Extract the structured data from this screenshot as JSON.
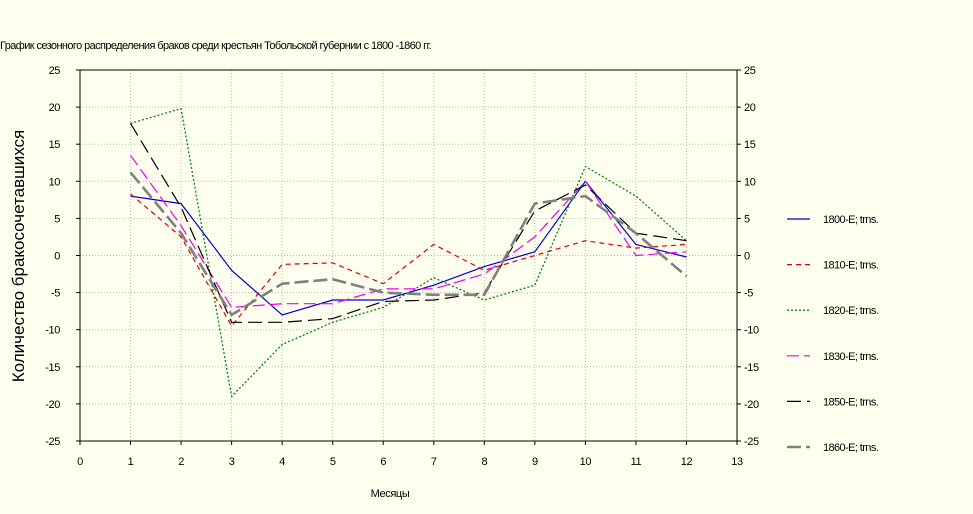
{
  "chart_data": {
    "type": "line",
    "title": "График сезонного распределения браков среди крестьян Тобольской губернии с 1800 -1860 гг.",
    "xlabel": "Месяцы",
    "ylabel": "Количество бракосочетавшихся",
    "xlim": [
      0,
      13
    ],
    "ylim": [
      -25,
      25
    ],
    "x_ticks": [
      0,
      1,
      2,
      3,
      4,
      5,
      6,
      7,
      8,
      9,
      10,
      11,
      12,
      13
    ],
    "y_ticks": [
      -25,
      -20,
      -15,
      -10,
      -5,
      0,
      5,
      10,
      15,
      20,
      25
    ],
    "grid": true,
    "legend_position": "right",
    "x": [
      1,
      2,
      3,
      4,
      5,
      6,
      7,
      8,
      9,
      10,
      11,
      12
    ],
    "series": [
      {
        "name": "1800-E; trns.",
        "color": "#0000cc",
        "dash": "solid",
        "width": 1.2,
        "values": [
          8,
          7,
          -2,
          -8,
          -6,
          -6,
          -4,
          -1.5,
          0.5,
          10,
          1.5,
          -0.2
        ]
      },
      {
        "name": "1810-E; trns.",
        "color": "#dd0000",
        "dash": "5,4",
        "width": 1.2,
        "values": [
          8.3,
          2.5,
          -9.5,
          -1.2,
          -1,
          -3.8,
          1.5,
          -2,
          0,
          2,
          1,
          1.5
        ]
      },
      {
        "name": "1820-E; trns.",
        "color": "#008800",
        "dash": "2,2",
        "width": 1.3,
        "values": [
          17.8,
          19.8,
          -19,
          -12,
          -9,
          -7,
          -3,
          -6,
          -4,
          12,
          8,
          2
        ]
      },
      {
        "name": "1830-E; trns.",
        "color": "#ee00ee",
        "dash": "12,5",
        "width": 1.2,
        "values": [
          13.5,
          4,
          -7,
          -6.5,
          -6.5,
          -4.5,
          -4.5,
          -2.5,
          2.5,
          10,
          0,
          0.5
        ]
      },
      {
        "name": "1850-E; trns.",
        "color": "#000000",
        "dash": "14,6",
        "width": 1.2,
        "values": [
          17.8,
          6.5,
          -9,
          -9,
          -8.5,
          -6.2,
          -6,
          -5,
          6,
          9.5,
          3,
          2
        ]
      },
      {
        "name": "1860-E; trns.",
        "color": "#808080",
        "dash": "14,5",
        "width": 2.6,
        "values": [
          11.2,
          3,
          -8,
          -3.8,
          -3.2,
          -5,
          -5.3,
          -5.3,
          7,
          8,
          3,
          -2.8
        ]
      }
    ]
  }
}
